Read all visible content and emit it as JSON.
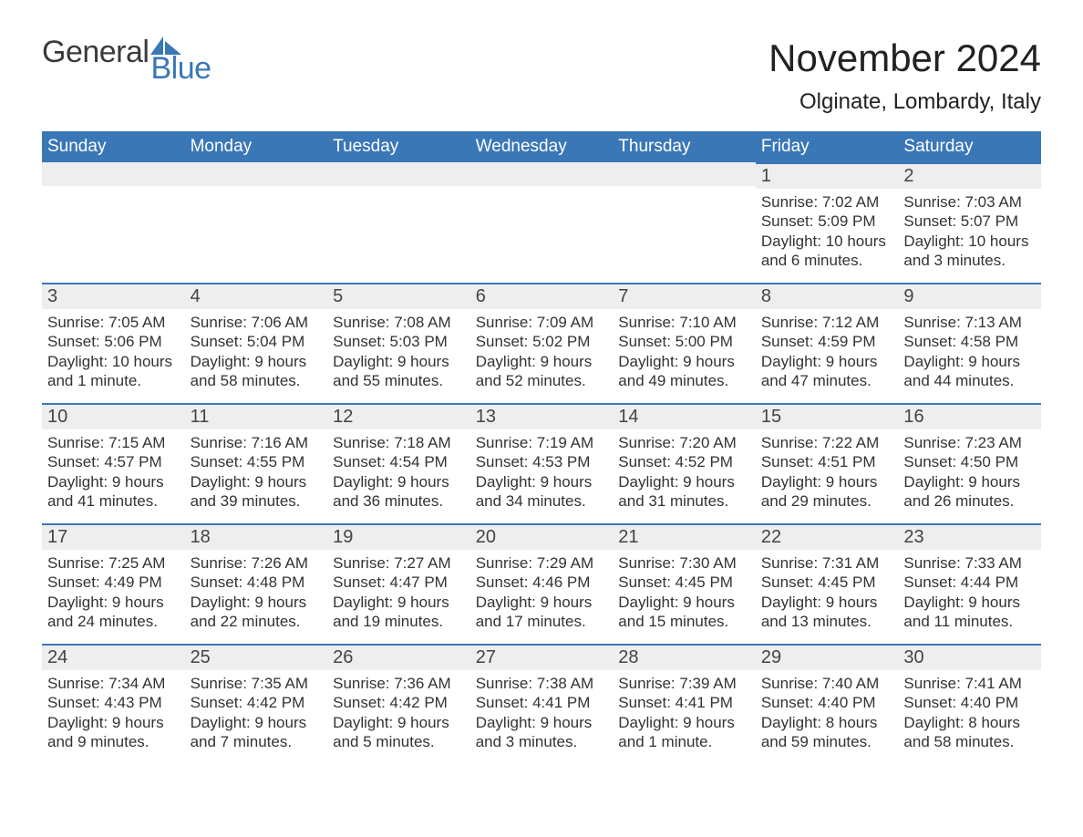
{
  "brand": {
    "word_general": "General",
    "word_blue": "Blue"
  },
  "colors": {
    "brand_blue": "#3a77b7",
    "weekday_bar_bg": "#3a77b7",
    "weekday_bar_text": "#ffffff",
    "day_header_bg": "#eeeeee",
    "day_header_border": "#3a77b7",
    "page_bg": "#ffffff",
    "text_color": "#222222"
  },
  "header": {
    "title": "November 2024",
    "location": "Olginate, Lombardy, Italy"
  },
  "weekdays": [
    "Sunday",
    "Monday",
    "Tuesday",
    "Wednesday",
    "Thursday",
    "Friday",
    "Saturday"
  ],
  "layout": {
    "leading_blanks": 5,
    "columns": 7
  },
  "days": [
    {
      "n": 1,
      "sunrise": "7:02 AM",
      "sunset": "5:09 PM",
      "daylight": "10 hours and 6 minutes."
    },
    {
      "n": 2,
      "sunrise": "7:03 AM",
      "sunset": "5:07 PM",
      "daylight": "10 hours and 3 minutes."
    },
    {
      "n": 3,
      "sunrise": "7:05 AM",
      "sunset": "5:06 PM",
      "daylight": "10 hours and 1 minute."
    },
    {
      "n": 4,
      "sunrise": "7:06 AM",
      "sunset": "5:04 PM",
      "daylight": "9 hours and 58 minutes."
    },
    {
      "n": 5,
      "sunrise": "7:08 AM",
      "sunset": "5:03 PM",
      "daylight": "9 hours and 55 minutes."
    },
    {
      "n": 6,
      "sunrise": "7:09 AM",
      "sunset": "5:02 PM",
      "daylight": "9 hours and 52 minutes."
    },
    {
      "n": 7,
      "sunrise": "7:10 AM",
      "sunset": "5:00 PM",
      "daylight": "9 hours and 49 minutes."
    },
    {
      "n": 8,
      "sunrise": "7:12 AM",
      "sunset": "4:59 PM",
      "daylight": "9 hours and 47 minutes."
    },
    {
      "n": 9,
      "sunrise": "7:13 AM",
      "sunset": "4:58 PM",
      "daylight": "9 hours and 44 minutes."
    },
    {
      "n": 10,
      "sunrise": "7:15 AM",
      "sunset": "4:57 PM",
      "daylight": "9 hours and 41 minutes."
    },
    {
      "n": 11,
      "sunrise": "7:16 AM",
      "sunset": "4:55 PM",
      "daylight": "9 hours and 39 minutes."
    },
    {
      "n": 12,
      "sunrise": "7:18 AM",
      "sunset": "4:54 PM",
      "daylight": "9 hours and 36 minutes."
    },
    {
      "n": 13,
      "sunrise": "7:19 AM",
      "sunset": "4:53 PM",
      "daylight": "9 hours and 34 minutes."
    },
    {
      "n": 14,
      "sunrise": "7:20 AM",
      "sunset": "4:52 PM",
      "daylight": "9 hours and 31 minutes."
    },
    {
      "n": 15,
      "sunrise": "7:22 AM",
      "sunset": "4:51 PM",
      "daylight": "9 hours and 29 minutes."
    },
    {
      "n": 16,
      "sunrise": "7:23 AM",
      "sunset": "4:50 PM",
      "daylight": "9 hours and 26 minutes."
    },
    {
      "n": 17,
      "sunrise": "7:25 AM",
      "sunset": "4:49 PM",
      "daylight": "9 hours and 24 minutes."
    },
    {
      "n": 18,
      "sunrise": "7:26 AM",
      "sunset": "4:48 PM",
      "daylight": "9 hours and 22 minutes."
    },
    {
      "n": 19,
      "sunrise": "7:27 AM",
      "sunset": "4:47 PM",
      "daylight": "9 hours and 19 minutes."
    },
    {
      "n": 20,
      "sunrise": "7:29 AM",
      "sunset": "4:46 PM",
      "daylight": "9 hours and 17 minutes."
    },
    {
      "n": 21,
      "sunrise": "7:30 AM",
      "sunset": "4:45 PM",
      "daylight": "9 hours and 15 minutes."
    },
    {
      "n": 22,
      "sunrise": "7:31 AM",
      "sunset": "4:45 PM",
      "daylight": "9 hours and 13 minutes."
    },
    {
      "n": 23,
      "sunrise": "7:33 AM",
      "sunset": "4:44 PM",
      "daylight": "9 hours and 11 minutes."
    },
    {
      "n": 24,
      "sunrise": "7:34 AM",
      "sunset": "4:43 PM",
      "daylight": "9 hours and 9 minutes."
    },
    {
      "n": 25,
      "sunrise": "7:35 AM",
      "sunset": "4:42 PM",
      "daylight": "9 hours and 7 minutes."
    },
    {
      "n": 26,
      "sunrise": "7:36 AM",
      "sunset": "4:42 PM",
      "daylight": "9 hours and 5 minutes."
    },
    {
      "n": 27,
      "sunrise": "7:38 AM",
      "sunset": "4:41 PM",
      "daylight": "9 hours and 3 minutes."
    },
    {
      "n": 28,
      "sunrise": "7:39 AM",
      "sunset": "4:41 PM",
      "daylight": "9 hours and 1 minute."
    },
    {
      "n": 29,
      "sunrise": "7:40 AM",
      "sunset": "4:40 PM",
      "daylight": "8 hours and 59 minutes."
    },
    {
      "n": 30,
      "sunrise": "7:41 AM",
      "sunset": "4:40 PM",
      "daylight": "8 hours and 58 minutes."
    }
  ],
  "labels": {
    "sunrise_prefix": "Sunrise: ",
    "sunset_prefix": "Sunset: ",
    "daylight_prefix": "Daylight: "
  }
}
